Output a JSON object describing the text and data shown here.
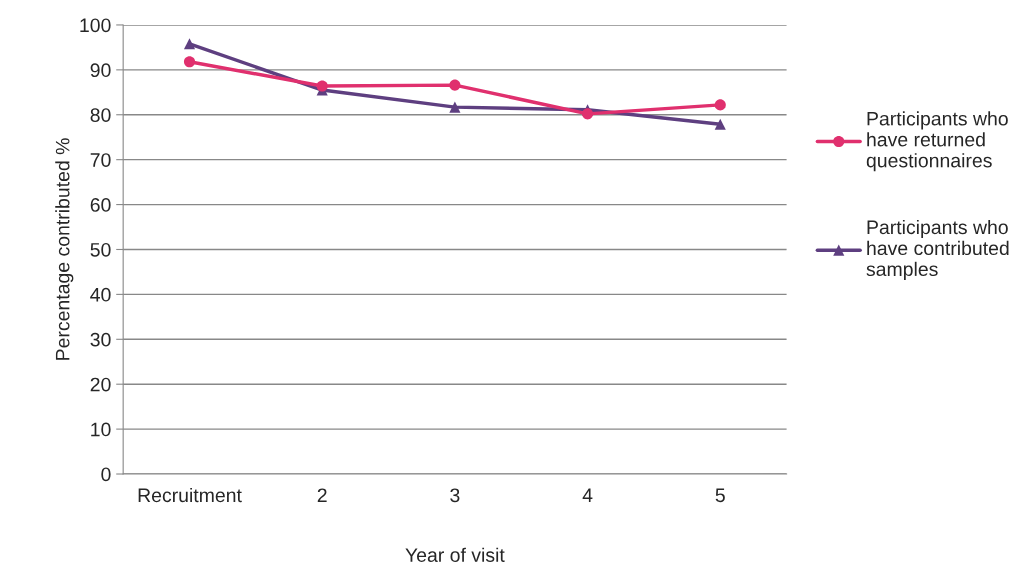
{
  "chart_data": {
    "type": "line",
    "xlabel": "Year of visit",
    "ylabel": "Percentage contributed %",
    "categories": [
      "Recruitment",
      "2",
      "3",
      "4",
      "5"
    ],
    "series": [
      {
        "name": "Participants who have returned questionnaires",
        "color": "#e0306e",
        "marker": "circle",
        "values": [
          91.8,
          86.4,
          86.6,
          80.2,
          82.2
        ]
      },
      {
        "name": "Participants who have contributed samples",
        "color": "#5e3f80",
        "marker": "triangle",
        "values": [
          95.8,
          85.5,
          81.7,
          81.1,
          77.9
        ]
      }
    ],
    "ylim": [
      0,
      100
    ],
    "yticks": [
      0,
      10,
      20,
      30,
      40,
      50,
      60,
      70,
      80,
      90,
      100
    ],
    "grid": "y",
    "legend": "right"
  }
}
